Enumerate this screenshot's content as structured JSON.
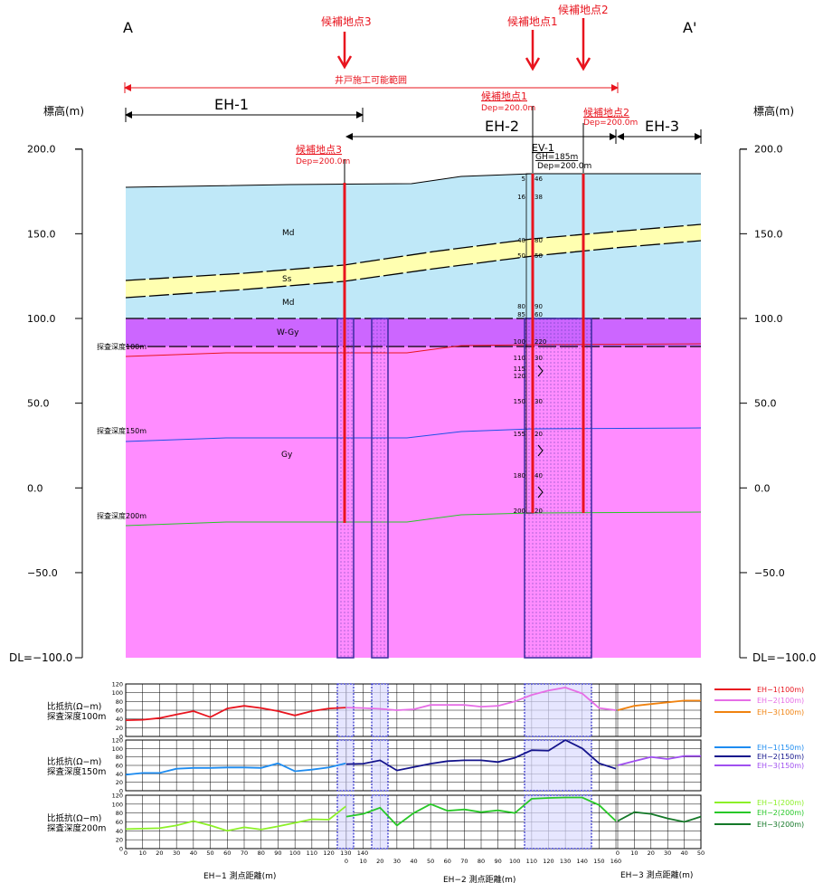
{
  "labels": {
    "section_left": "A",
    "section_right": "A'",
    "candidate1": "候補地点1",
    "candidate2": "候補地点2",
    "candidate3": "候補地点3",
    "depth_label": "Dep=200.0m",
    "range_label": "井戸施工可能範囲",
    "line_eh1": "EH-1",
    "line_eh2": "EH-2",
    "line_eh3": "EH-3",
    "elev_label_left": "標高(m)",
    "elev_label_right": "標高(m)",
    "ev1_name": "EV-1",
    "ev1_gh": "GH=185m",
    "ev1_dep": "Dep=200.0m",
    "layer_md_upper": "Md",
    "layer_ss": "Ss",
    "layer_md_lower": "Md",
    "layer_wgy": "W-Gy",
    "layer_gy": "Gy",
    "probe100": "探査深度100m",
    "probe150": "探査深度150m",
    "probe200": "探査深度200m",
    "dl_left": "DL=−100.0",
    "dl_right": "DL=−100.0"
  },
  "elevation_ticks": [
    "200.0",
    "150.0",
    "100.0",
    "50.0",
    "0.0",
    "−50.0"
  ],
  "elevation_tick_values": [
    200,
    150,
    100,
    50,
    0,
    -50
  ],
  "ev1_readings": [
    "5|46",
    "16|38",
    "40|80",
    "50|50",
    "80|90",
    "85|60",
    "100|220",
    "110|30",
    "115|",
    "120|",
    "150|30",
    "155|20",
    "180|40",
    "200|20"
  ],
  "resistivity_panels": [
    {
      "label_line1": "比抵抗(Ω−m)",
      "label_line2": "探査深度100m",
      "yticks": [
        "120",
        "100",
        "80",
        "60",
        "40",
        "20",
        "0"
      ]
    },
    {
      "label_line1": "比抵抗(Ω−m)",
      "label_line2": "探査深度150m",
      "yticks": [
        "120",
        "100",
        "80",
        "60",
        "40",
        "20",
        "0"
      ]
    },
    {
      "label_line1": "比抵抗(Ω−m)",
      "label_line2": "探査深度200m",
      "yticks": [
        "120",
        "100",
        "80",
        "60",
        "40",
        "20",
        "0"
      ]
    }
  ],
  "legend": [
    {
      "label": "EH−1(100m)",
      "color": "#e8141e"
    },
    {
      "label": "EH−2(100m)",
      "color": "#e66ee6"
    },
    {
      "label": "EH−3(100m)",
      "color": "#f0820f"
    },
    {
      "label": "EH−1(150m)",
      "color": "#1e8cf0"
    },
    {
      "label": "EH−2(150m)",
      "color": "#14148c"
    },
    {
      "label": "EH−3(150m)",
      "color": "#a050f0"
    },
    {
      "label": "EH−1(200m)",
      "color": "#8cf028"
    },
    {
      "label": "EH−2(200m)",
      "color": "#28c828"
    },
    {
      "label": "EH−3(200m)",
      "color": "#147828"
    }
  ],
  "x_axes": {
    "eh1_ticks": [
      "0",
      "10",
      "20",
      "30",
      "40",
      "50",
      "60",
      "70",
      "80",
      "90",
      "100",
      "110",
      "120",
      "130",
      "140"
    ],
    "eh2_ticks": [
      "0",
      "10",
      "20",
      "30",
      "40",
      "50",
      "60",
      "70",
      "80",
      "90",
      "100",
      "110",
      "120",
      "130",
      "140",
      "150",
      "160"
    ],
    "eh3_ticks": [
      "0",
      "10",
      "20",
      "30",
      "40",
      "50"
    ],
    "eh1_title": "EH−1 測点距離(m)",
    "eh2_title": "EH−2 測点距離(m)",
    "eh3_title": "EH−3 測点距離(m)"
  },
  "chart_data": {
    "type": "line",
    "ylim": [
      0,
      120
    ],
    "series": [
      {
        "name": "EH−1(100m)",
        "panel": 0,
        "line": "EH-1",
        "color": "#e8141e",
        "x": [
          0,
          10,
          20,
          30,
          40,
          50,
          60,
          70,
          80,
          90,
          100,
          110,
          120,
          130
        ],
        "values": [
          37,
          38,
          42,
          50,
          58,
          44,
          64,
          70,
          65,
          58,
          48,
          58,
          64,
          66
        ]
      },
      {
        "name": "EH−2(100m)",
        "panel": 0,
        "line": "EH-2",
        "color": "#e66ee6",
        "x": [
          0,
          10,
          20,
          30,
          40,
          50,
          60,
          70,
          80,
          90,
          100,
          110,
          120,
          130,
          140,
          150,
          160
        ],
        "values": [
          66,
          65,
          63,
          60,
          62,
          72,
          72,
          72,
          68,
          70,
          80,
          95,
          105,
          112,
          98,
          65,
          60
        ]
      },
      {
        "name": "EH−3(100m)",
        "panel": 0,
        "line": "EH-3",
        "color": "#f0820f",
        "x": [
          0,
          10,
          20,
          30,
          40,
          50
        ],
        "values": [
          60,
          70,
          74,
          78,
          82,
          82
        ]
      },
      {
        "name": "EH−1(150m)",
        "panel": 1,
        "line": "EH-1",
        "color": "#1e8cf0",
        "x": [
          0,
          10,
          20,
          30,
          40,
          50,
          60,
          70,
          80,
          90,
          100,
          110,
          120,
          130
        ],
        "values": [
          38,
          42,
          42,
          52,
          54,
          54,
          55,
          55,
          54,
          65,
          46,
          50,
          55,
          65
        ]
      },
      {
        "name": "EH−2(150m)",
        "panel": 1,
        "line": "EH-2",
        "color": "#14148c",
        "x": [
          0,
          10,
          20,
          30,
          40,
          50,
          60,
          70,
          80,
          90,
          100,
          110,
          120,
          130,
          140,
          150,
          160
        ],
        "values": [
          63,
          64,
          72,
          48,
          56,
          64,
          70,
          72,
          72,
          68,
          78,
          96,
          95,
          120,
          100,
          65,
          52
        ]
      },
      {
        "name": "EH−3(150m)",
        "panel": 1,
        "line": "EH-3",
        "color": "#a050f0",
        "x": [
          0,
          10,
          20,
          30,
          40,
          50
        ],
        "values": [
          60,
          70,
          80,
          75,
          82,
          82
        ]
      },
      {
        "name": "EH−1(200m)",
        "panel": 2,
        "line": "EH-1",
        "color": "#8cf028",
        "x": [
          0,
          10,
          20,
          30,
          40,
          50,
          60,
          70,
          80,
          90,
          100,
          110,
          120,
          130
        ],
        "values": [
          44,
          45,
          46,
          52,
          62,
          52,
          40,
          48,
          43,
          50,
          58,
          66,
          65,
          95
        ]
      },
      {
        "name": "EH−2(200m)",
        "panel": 2,
        "line": "EH-2",
        "color": "#28c828",
        "x": [
          0,
          10,
          20,
          30,
          40,
          50,
          60,
          70,
          80,
          90,
          100,
          110,
          120,
          130,
          140,
          150,
          160
        ],
        "values": [
          72,
          78,
          92,
          52,
          80,
          100,
          85,
          88,
          82,
          86,
          80,
          112,
          114,
          115,
          115,
          98,
          62
        ]
      },
      {
        "name": "EH−3(200m)",
        "panel": 2,
        "line": "EH-3",
        "color": "#147828",
        "x": [
          0,
          10,
          20,
          30,
          40,
          50
        ],
        "values": [
          62,
          82,
          78,
          68,
          60,
          72
        ]
      }
    ]
  }
}
